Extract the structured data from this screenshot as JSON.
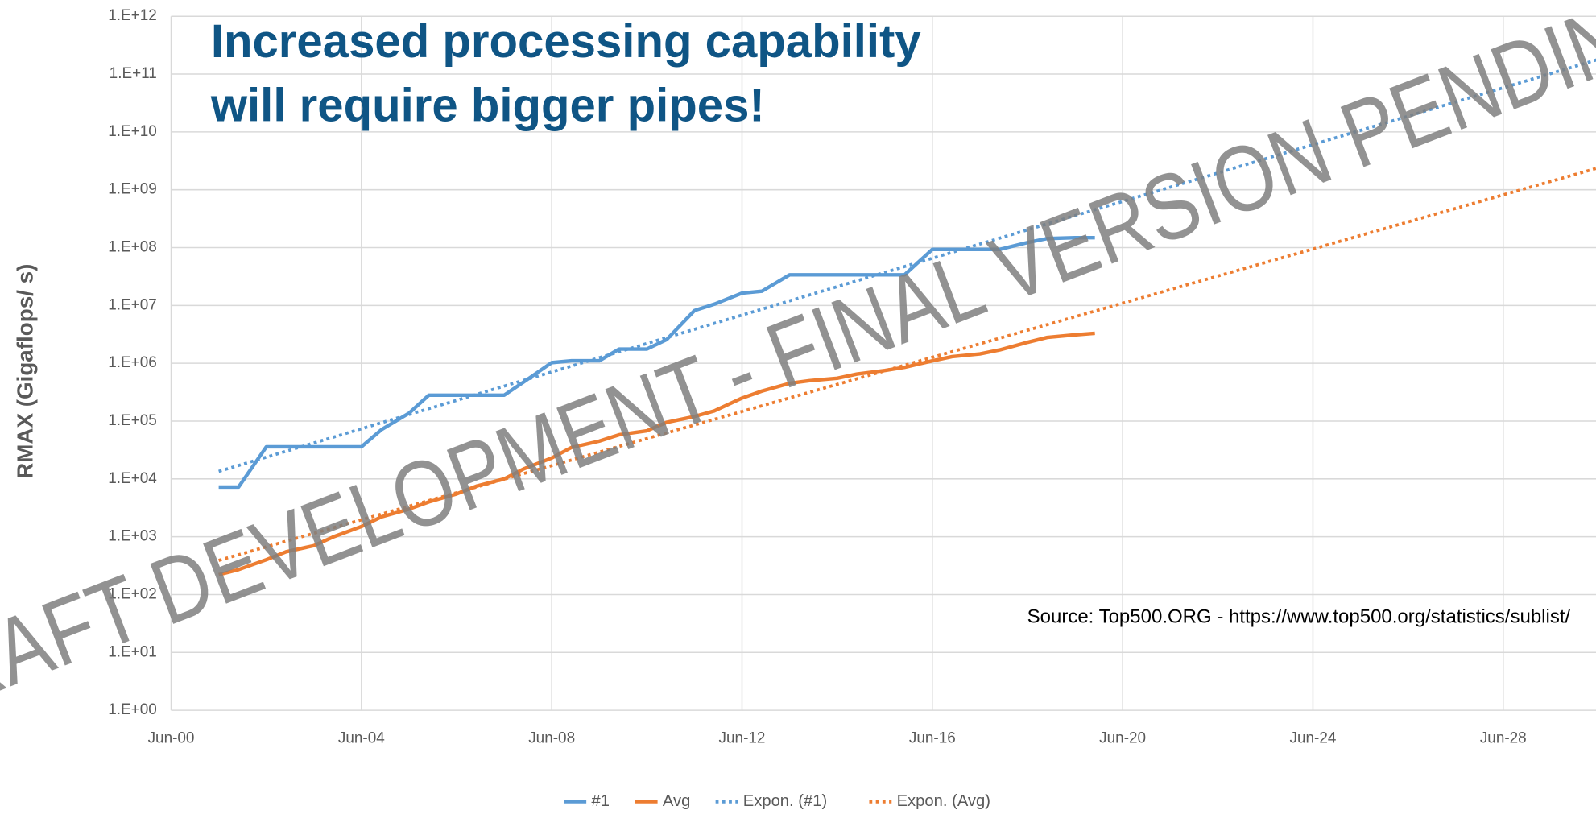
{
  "chart_data": {
    "type": "line",
    "title": [
      "Increased processing capability",
      "will require bigger pipes!"
    ],
    "ylabel": "RMAX (Gigaflops/ s)",
    "annotation": "Source: Top500.ORG - https://www.top500.org/statistics/sublist/",
    "watermark": "DRAFT DEVELOPMENT - FINAL VERSION PENDING",
    "log_y": true,
    "grid": true,
    "legend": "bottom",
    "xlim": [
      "2000-06",
      "2030-06"
    ],
    "xticks": [
      {
        "value": "2000-06",
        "label": "Jun-00"
      },
      {
        "value": "2004-06",
        "label": "Jun-04"
      },
      {
        "value": "2008-06",
        "label": "Jun-08"
      },
      {
        "value": "2012-06",
        "label": "Jun-12"
      },
      {
        "value": "2016-06",
        "label": "Jun-16"
      },
      {
        "value": "2020-06",
        "label": "Jun-20"
      },
      {
        "value": "2024-06",
        "label": "Jun-24"
      },
      {
        "value": "2028-06",
        "label": "Jun-28"
      }
    ],
    "ylim": [
      1,
      1000000000000
    ],
    "yticks": [
      {
        "value": 1,
        "label": "1.E+00"
      },
      {
        "value": 10,
        "label": "1.E+01"
      },
      {
        "value": 100,
        "label": "1.E+02"
      },
      {
        "value": 1000,
        "label": "1.E+03"
      },
      {
        "value": 10000,
        "label": "1.E+04"
      },
      {
        "value": 100000,
        "label": "1.E+05"
      },
      {
        "value": 1000000,
        "label": "1.E+06"
      },
      {
        "value": 10000000,
        "label": "1.E+07"
      },
      {
        "value": 100000000,
        "label": "1.E+08"
      },
      {
        "value": 1000000000,
        "label": "1.E+09"
      },
      {
        "value": 10000000000,
        "label": "1.E+10"
      },
      {
        "value": 100000000000,
        "label": "1.E+11"
      },
      {
        "value": 1000000000000,
        "label": "1.E+12"
      }
    ],
    "x": [
      "2001-06",
      "2001-11",
      "2002-06",
      "2002-11",
      "2003-06",
      "2003-11",
      "2004-06",
      "2004-11",
      "2005-06",
      "2005-11",
      "2006-06",
      "2006-11",
      "2007-06",
      "2007-11",
      "2008-06",
      "2008-11",
      "2009-06",
      "2009-11",
      "2010-06",
      "2010-11",
      "2011-06",
      "2011-11",
      "2012-06",
      "2012-11",
      "2013-06",
      "2013-11",
      "2014-06",
      "2014-11",
      "2015-06",
      "2015-11",
      "2016-06",
      "2016-11",
      "2017-06",
      "2017-11",
      "2018-06",
      "2018-11",
      "2019-06",
      "2019-11"
    ],
    "series": [
      {
        "name": "#1",
        "color": "#5b9bd5",
        "style": "solid",
        "values": [
          7226,
          7226,
          35860,
          35860,
          35860,
          35860,
          35860,
          70720,
          136800,
          280600,
          280600,
          280600,
          280600,
          478200,
          1026000,
          1105000,
          1105000,
          1759000,
          1759000,
          2566000,
          8162000,
          10510000,
          16320000,
          17590000,
          33860000,
          33860000,
          33860000,
          33860000,
          33860000,
          33860000,
          93010000,
          93010000,
          93010000,
          93010000,
          122300000,
          143500000,
          148600000,
          148600000
        ]
      },
      {
        "name": "Avg",
        "color": "#ed7d31",
        "style": "solid",
        "values": [
          220,
          270,
          400,
          550,
          700,
          1000,
          1500,
          2200,
          3000,
          4000,
          5500,
          7500,
          10000,
          15000,
          23000,
          35000,
          45000,
          58000,
          68000,
          95000,
          120000,
          150000,
          250000,
          330000,
          450000,
          500000,
          550000,
          650000,
          750000,
          850000,
          1100000,
          1300000,
          1450000,
          1700000,
          2300000,
          2800000,
          3100000,
          3300000
        ]
      },
      {
        "name": "Expon. (#1)",
        "color": "#5b9bd5",
        "style": "dotted",
        "x": [
          "2001-06",
          "2030-06"
        ],
        "values": [
          13500,
          180000000000
        ]
      },
      {
        "name": "Expon. (Avg)",
        "color": "#ed7d31",
        "style": "dotted",
        "x": [
          "2001-06",
          "2030-06"
        ],
        "values": [
          390,
          2400000000
        ]
      }
    ]
  }
}
